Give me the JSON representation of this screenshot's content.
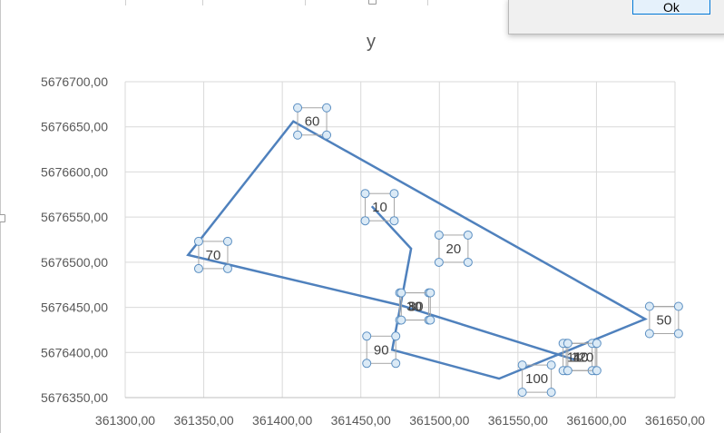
{
  "dialog": {
    "ok_label": "Ok"
  },
  "chart_data": {
    "type": "scatter-line",
    "title": "y",
    "xlim": [
      361300,
      361650
    ],
    "ylim": [
      5676350,
      5676700
    ],
    "x_ticks": [
      361300,
      361350,
      361400,
      361450,
      361500,
      361550,
      361600,
      361650
    ],
    "x_tick_labels": [
      "361300,00",
      "361350,00",
      "361400,00",
      "361450,00",
      "361500,00",
      "361550,00",
      "361600,00",
      "361650,00"
    ],
    "y_ticks": [
      5676350,
      5676400,
      5676450,
      5676500,
      5676550,
      5676600,
      5676650,
      5676700
    ],
    "y_tick_labels": [
      "5676350,00",
      "5676400,00",
      "5676450,00",
      "5676500,00",
      "5676550,00",
      "5676600,00",
      "5676650,00",
      "5676700,00"
    ],
    "grid": true,
    "series_color": "#4f81bd",
    "points": [
      {
        "x": 361457,
        "y": 5676562
      },
      {
        "x": 361482,
        "y": 5676515
      },
      {
        "x": 361470,
        "y": 5676403
      },
      {
        "x": 361538,
        "y": 5676371
      },
      {
        "x": 361631,
        "y": 5676437
      },
      {
        "x": 361407,
        "y": 5676656
      },
      {
        "x": 361340,
        "y": 5676508
      },
      {
        "x": 361476,
        "y": 5676452
      },
      {
        "x": 361586,
        "y": 5676392
      }
    ],
    "data_labels": [
      {
        "text": "10",
        "x": 361462,
        "y": 5676561
      },
      {
        "text": "20",
        "x": 361509,
        "y": 5676515
      },
      {
        "text": "30",
        "x": 361484,
        "y": 5676451
      },
      {
        "text": "40",
        "x": 361590,
        "y": 5676395
      },
      {
        "text": "50",
        "x": 361643,
        "y": 5676436
      },
      {
        "text": "60",
        "x": 361419,
        "y": 5676656
      },
      {
        "text": "70",
        "x": 361356,
        "y": 5676508
      },
      {
        "text": "80",
        "x": 361485,
        "y": 5676451
      },
      {
        "text": "90",
        "x": 361463,
        "y": 5676403
      },
      {
        "text": "100",
        "x": 361562,
        "y": 5676371
      },
      {
        "text": "110",
        "x": 361588,
        "y": 5676395
      },
      {
        "text": "120",
        "x": 361591,
        "y": 5676395
      }
    ]
  }
}
